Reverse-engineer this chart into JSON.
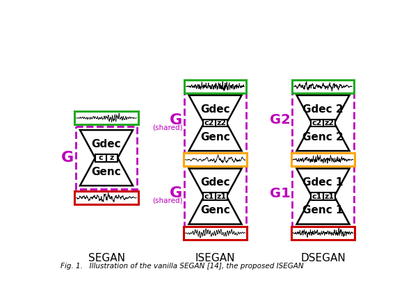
{
  "background_color": "#ffffff",
  "labels": {
    "segan": "SEGAN",
    "isegan": "ISEGAN",
    "dsegan": "DSEGAN"
  },
  "colors": {
    "purple_dashed": "#BB00BB",
    "green_box": "#22AA22",
    "orange_box": "#FFA500",
    "red_box": "#CC0000",
    "black": "#000000",
    "white": "#ffffff"
  },
  "caption": "Fig. 1.   Illustration of the vanilla SEGAN [14], the proposed ISEGAN"
}
